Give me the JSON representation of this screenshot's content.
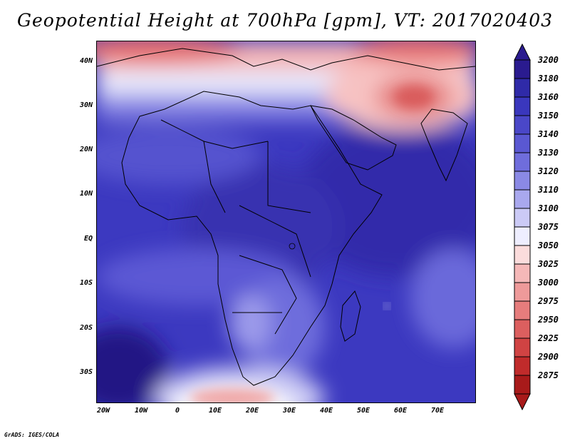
{
  "title": "Geopotential Height at 700hPa [gpm], VT: 2017020403",
  "footer": "GrADS: IGES/COLA",
  "map": {
    "lat_labels": [
      "40N",
      "30N",
      "20N",
      "10N",
      "EQ",
      "10S",
      "20S",
      "30S"
    ],
    "lon_labels": [
      "20W",
      "10W",
      "0",
      "10E",
      "20E",
      "30E",
      "40E",
      "50E",
      "60E",
      "70E"
    ]
  },
  "colorbar": {
    "levels": [
      "3200",
      "3180",
      "3160",
      "3150",
      "3140",
      "3130",
      "3120",
      "3110",
      "3100",
      "3075",
      "3050",
      "3025",
      "3000",
      "2975",
      "2950",
      "2925",
      "2900",
      "2875"
    ],
    "colors": [
      "#2a1b8f",
      "#2f2aa8",
      "#3a37bd",
      "#4a47c8",
      "#5a58d2",
      "#6f6ddc",
      "#8a89e5",
      "#a9a8ee",
      "#cbcaf6",
      "#eeeeff",
      "#fbdcdc",
      "#f5b8b8",
      "#ee9a9a",
      "#e67c7c",
      "#dc5f5f",
      "#d04343",
      "#c02b2b",
      "#a81a1a"
    ]
  }
}
